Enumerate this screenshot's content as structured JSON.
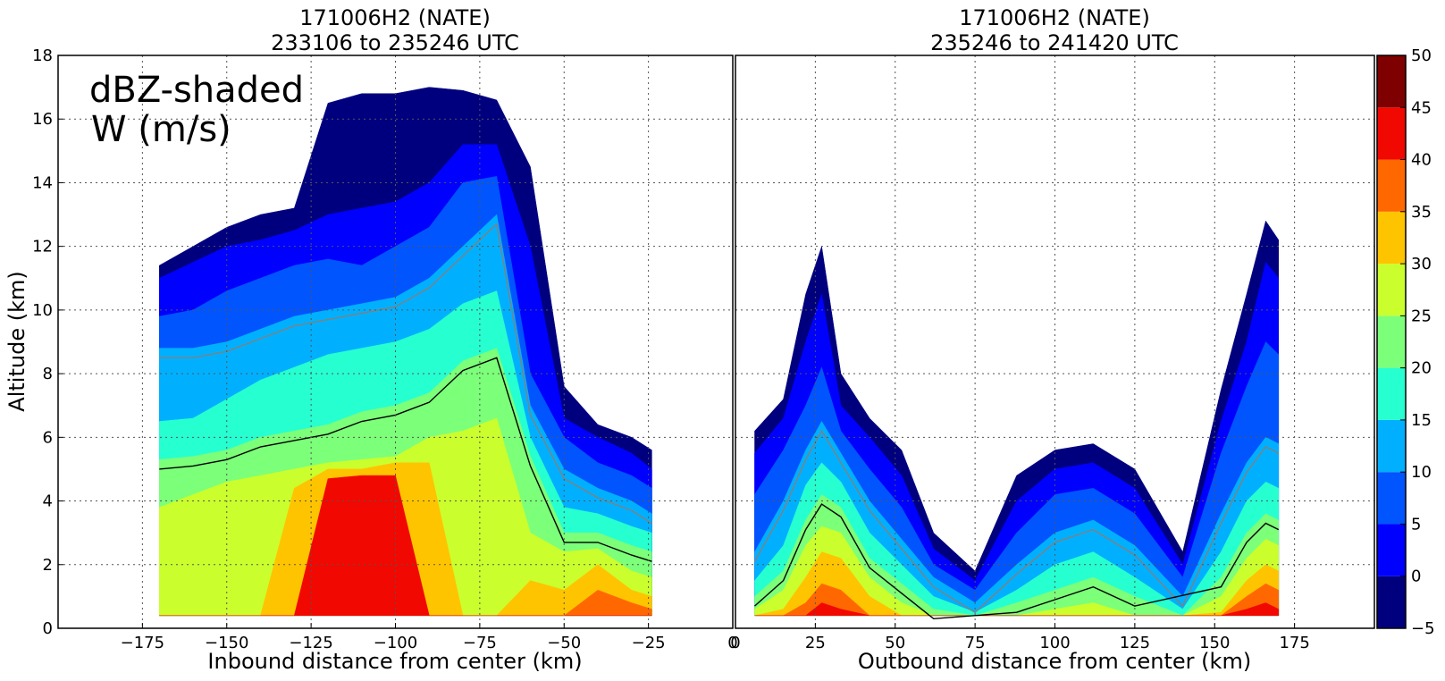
{
  "chart_data": [
    {
      "type": "heatmap",
      "panel": "left",
      "title_line1": "171006H2 (NATE)",
      "title_line2": "233106 to 235246 UTC",
      "xlabel": "Inbound distance from center (km)",
      "ylabel": "Altitude (km)",
      "xlim": [
        -200,
        0
      ],
      "ylim": [
        0,
        18
      ],
      "xticks": [
        -175,
        -150,
        -125,
        -100,
        -75,
        -50,
        -25,
        0
      ],
      "xtick_labels": [
        "−175",
        "−150",
        "−125",
        "−100",
        "−75",
        "−50",
        "−25",
        "0"
      ],
      "yticks": [
        0,
        2,
        4,
        6,
        8,
        10,
        12,
        14,
        16,
        18
      ],
      "ytick_labels": [
        "0",
        "2",
        "4",
        "6",
        "8",
        "10",
        "12",
        "14",
        "16",
        "18"
      ],
      "annotation_line1": "dBZ-shaded",
      "annotation_line2": "W (m/s)",
      "grid": true,
      "contour_label": "1",
      "profile": [
        {
          "x": -170,
          "top": 11.4,
          "l0": 11.0,
          "l5": 9.8,
          "l10": 8.8,
          "l15": 6.5,
          "l20": 5.3,
          "l25": 3.8,
          "l30": 0,
          "l35": 0,
          "l40": 0
        },
        {
          "x": -160,
          "top": 12.0,
          "l0": 11.5,
          "l5": 10.0,
          "l10": 8.8,
          "l15": 6.6,
          "l20": 5.4,
          "l25": 4.2,
          "l30": 0,
          "l35": 0,
          "l40": 0
        },
        {
          "x": -150,
          "top": 12.6,
          "l0": 12.0,
          "l5": 10.6,
          "l10": 9.0,
          "l15": 7.2,
          "l20": 5.6,
          "l25": 4.6,
          "l30": 0,
          "l35": 0,
          "l40": 0
        },
        {
          "x": -140,
          "top": 13.0,
          "l0": 12.2,
          "l5": 11.0,
          "l10": 9.4,
          "l15": 7.8,
          "l20": 6.0,
          "l25": 4.8,
          "l30": 0,
          "l35": 0,
          "l40": 0
        },
        {
          "x": -130,
          "top": 13.2,
          "l0": 12.5,
          "l5": 11.4,
          "l10": 9.8,
          "l15": 8.2,
          "l20": 6.2,
          "l25": 5.0,
          "l30": 4.4,
          "l35": 0,
          "l40": 0
        },
        {
          "x": -120,
          "top": 16.5,
          "l0": 13.0,
          "l5": 11.6,
          "l10": 10.0,
          "l15": 8.6,
          "l20": 6.4,
          "l25": 5.2,
          "l30": 5.0,
          "l35": 4.4,
          "l40": 4.7
        },
        {
          "x": -110,
          "top": 16.8,
          "l0": 13.2,
          "l5": 11.4,
          "l10": 10.2,
          "l15": 8.8,
          "l20": 6.8,
          "l25": 5.3,
          "l30": 5.0,
          "l35": 4.5,
          "l40": 4.8
        },
        {
          "x": -100,
          "top": 16.8,
          "l0": 13.4,
          "l5": 12.0,
          "l10": 10.4,
          "l15": 9.0,
          "l20": 7.0,
          "l25": 5.4,
          "l30": 5.2,
          "l35": 4.6,
          "l40": 4.8
        },
        {
          "x": -90,
          "top": 17.0,
          "l0": 14.0,
          "l5": 12.6,
          "l10": 11.0,
          "l15": 9.4,
          "l20": 7.4,
          "l25": 6.0,
          "l30": 5.2,
          "l35": 0,
          "l40": 0
        },
        {
          "x": -80,
          "top": 16.9,
          "l0": 15.2,
          "l5": 14.0,
          "l10": 12.0,
          "l15": 10.2,
          "l20": 8.4,
          "l25": 6.2,
          "l30": 0,
          "l35": 0,
          "l40": 0
        },
        {
          "x": -70,
          "top": 16.6,
          "l0": 15.2,
          "l5": 14.2,
          "l10": 13.0,
          "l15": 10.6,
          "l20": 8.8,
          "l25": 6.6,
          "l30": 0,
          "l35": 0,
          "l40": 0
        },
        {
          "x": -60,
          "top": 14.5,
          "l0": 12.0,
          "l5": 8.0,
          "l10": 7.0,
          "l15": 6.0,
          "l20": 5.4,
          "l25": 3.0,
          "l30": 1.5,
          "l35": 0,
          "l40": 0
        },
        {
          "x": -50,
          "top": 7.6,
          "l0": 6.6,
          "l5": 6.0,
          "l10": 5.0,
          "l15": 3.8,
          "l20": 3.0,
          "l25": 2.4,
          "l30": 1.2,
          "l35": 0,
          "l40": 0
        },
        {
          "x": -40,
          "top": 6.4,
          "l0": 6.0,
          "l5": 5.2,
          "l10": 4.4,
          "l15": 3.6,
          "l20": 3.0,
          "l25": 2.5,
          "l30": 2.0,
          "l35": 1.2,
          "l40": 0
        },
        {
          "x": -30,
          "top": 6.0,
          "l0": 5.5,
          "l5": 4.8,
          "l10": 4.0,
          "l15": 3.2,
          "l20": 2.6,
          "l25": 1.8,
          "l30": 1.2,
          "l35": 0.8,
          "l40": 0
        },
        {
          "x": -24,
          "top": 5.6,
          "l0": 5.0,
          "l5": 4.4,
          "l10": 3.6,
          "l15": 3.0,
          "l20": 2.4,
          "l25": 1.6,
          "l30": 1.0,
          "l35": 0.6,
          "l40": 0
        }
      ]
    },
    {
      "type": "heatmap",
      "panel": "right",
      "title_line1": "171006H2 (NATE)",
      "title_line2": "235246 to 241420 UTC",
      "xlabel": "Outbound distance from center (km)",
      "ylabel": "",
      "xlim": [
        0,
        200
      ],
      "ylim": [
        0,
        18
      ],
      "xticks": [
        0,
        25,
        50,
        75,
        100,
        125,
        150,
        175
      ],
      "xtick_labels": [
        "0",
        "25",
        "50",
        "75",
        "100",
        "125",
        "150",
        "175"
      ],
      "grid": true,
      "profile": [
        {
          "x": 6,
          "top": 6.2,
          "l0": 5.5,
          "l5": 4.2,
          "l10": 2.4,
          "l15": 1.5,
          "l20": 1.0,
          "l25": 0.6,
          "l30": 0,
          "l35": 0,
          "l40": 0
        },
        {
          "x": 15,
          "top": 7.2,
          "l0": 6.6,
          "l5": 5.6,
          "l10": 4.0,
          "l15": 2.6,
          "l20": 1.8,
          "l25": 1.2,
          "l30": 0.6,
          "l35": 0,
          "l40": 0
        },
        {
          "x": 22,
          "top": 10.5,
          "l0": 9.0,
          "l5": 7.0,
          "l10": 5.6,
          "l15": 4.5,
          "l20": 3.4,
          "l25": 2.6,
          "l30": 1.6,
          "l35": 0.8,
          "l40": 0
        },
        {
          "x": 27,
          "top": 12.0,
          "l0": 10.5,
          "l5": 8.2,
          "l10": 6.5,
          "l15": 5.2,
          "l20": 4.2,
          "l25": 3.2,
          "l30": 2.4,
          "l35": 1.4,
          "l40": 0.8
        },
        {
          "x": 33,
          "top": 8.0,
          "l0": 7.0,
          "l5": 6.2,
          "l10": 5.5,
          "l15": 4.6,
          "l20": 3.8,
          "l25": 3.0,
          "l30": 2.2,
          "l35": 1.2,
          "l40": 0.6
        },
        {
          "x": 42,
          "top": 6.6,
          "l0": 6.0,
          "l5": 5.0,
          "l10": 4.0,
          "l15": 3.0,
          "l20": 2.2,
          "l25": 1.6,
          "l30": 1.0,
          "l35": 0,
          "l40": 0
        },
        {
          "x": 52,
          "top": 5.6,
          "l0": 4.8,
          "l5": 3.8,
          "l10": 2.8,
          "l15": 2.0,
          "l20": 1.4,
          "l25": 0.8,
          "l30": 0,
          "l35": 0,
          "l40": 0
        },
        {
          "x": 62,
          "top": 3.0,
          "l0": 2.5,
          "l5": 2.0,
          "l10": 1.6,
          "l15": 1.0,
          "l20": 0.6,
          "l25": 0,
          "l30": 0,
          "l35": 0,
          "l40": 0
        },
        {
          "x": 75,
          "top": 1.8,
          "l0": 1.5,
          "l5": 1.2,
          "l10": 0.8,
          "l15": 0.5,
          "l20": 0,
          "l25": 0,
          "l30": 0,
          "l35": 0,
          "l40": 0
        },
        {
          "x": 88,
          "top": 4.8,
          "l0": 4.0,
          "l5": 3.0,
          "l10": 2.0,
          "l15": 1.2,
          "l20": 0.8,
          "l25": 0,
          "l30": 0,
          "l35": 0,
          "l40": 0
        },
        {
          "x": 100,
          "top": 5.6,
          "l0": 5.0,
          "l5": 4.2,
          "l10": 3.0,
          "l15": 2.0,
          "l20": 1.2,
          "l25": 0.6,
          "l30": 0,
          "l35": 0,
          "l40": 0
        },
        {
          "x": 112,
          "top": 5.8,
          "l0": 5.2,
          "l5": 4.4,
          "l10": 3.4,
          "l15": 2.4,
          "l20": 1.6,
          "l25": 0.8,
          "l30": 0,
          "l35": 0,
          "l40": 0
        },
        {
          "x": 125,
          "top": 5.0,
          "l0": 4.4,
          "l5": 3.6,
          "l10": 2.6,
          "l15": 1.6,
          "l20": 1.0,
          "l25": 0.4,
          "l30": 0,
          "l35": 0,
          "l40": 0
        },
        {
          "x": 140,
          "top": 2.4,
          "l0": 2.0,
          "l5": 1.6,
          "l10": 1.0,
          "l15": 0.6,
          "l20": 0,
          "l25": 0,
          "l30": 0,
          "l35": 0,
          "l40": 0
        },
        {
          "x": 152,
          "top": 7.5,
          "l0": 6.5,
          "l5": 5.5,
          "l10": 3.6,
          "l15": 2.4,
          "l20": 1.6,
          "l25": 1.0,
          "l30": 0.5,
          "l35": 0,
          "l40": 0
        },
        {
          "x": 160,
          "top": 10.5,
          "l0": 9.0,
          "l5": 7.6,
          "l10": 5.2,
          "l15": 4.0,
          "l20": 3.0,
          "l25": 2.2,
          "l30": 1.5,
          "l35": 1.0,
          "l40": 0.6
        },
        {
          "x": 166,
          "top": 12.8,
          "l0": 11.5,
          "l5": 9.0,
          "l10": 6.0,
          "l15": 4.6,
          "l20": 3.6,
          "l25": 2.8,
          "l30": 2.0,
          "l35": 1.4,
          "l40": 0.8
        },
        {
          "x": 170,
          "top": 12.2,
          "l0": 11.0,
          "l5": 8.6,
          "l10": 5.8,
          "l15": 4.4,
          "l20": 3.4,
          "l25": 2.6,
          "l30": 1.8,
          "l35": 1.2,
          "l40": 0.6
        }
      ]
    }
  ],
  "colorbar": {
    "levels": [
      -5,
      0,
      5,
      10,
      15,
      20,
      25,
      30,
      35,
      40,
      45,
      50
    ],
    "tick_labels": [
      "−5",
      "0",
      "5",
      "10",
      "15",
      "20",
      "25",
      "30",
      "35",
      "40",
      "45",
      "50"
    ],
    "colors": [
      "#00007f",
      "#0000ff",
      "#0055ff",
      "#00b0ff",
      "#26ffd0",
      "#7cff79",
      "#caff2d",
      "#ffc400",
      "#ff6800",
      "#f10800",
      "#7f0000"
    ]
  }
}
